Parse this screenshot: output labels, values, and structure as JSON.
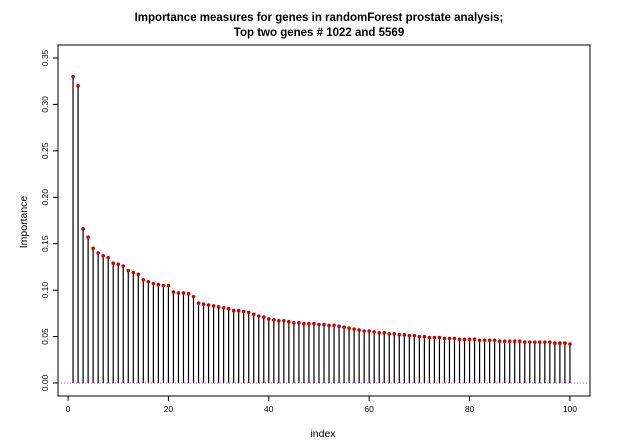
{
  "chart_data": {
    "type": "bar",
    "title_line1": "Importance measures for genes in randomForest prostate analysis;",
    "title_line2": "Top two genes # 1022 and 5569",
    "xlabel": "index",
    "ylabel": "Importance",
    "xlim": [
      -2,
      104
    ],
    "ylim": [
      -0.014,
      0.364
    ],
    "x_ticks": [
      0,
      20,
      40,
      60,
      80,
      100
    ],
    "y_ticks": [
      0.0,
      0.05,
      0.1,
      0.15,
      0.2,
      0.25,
      0.3,
      0.35
    ],
    "y_tick_labels": [
      "0.00",
      "0.05",
      "0.10",
      "0.15",
      "0.20",
      "0.25",
      "0.30",
      "0.35"
    ],
    "reference_line": 0,
    "colors": {
      "stem": "#000000",
      "point": "#cc0000",
      "reference_line": "#cc33cc"
    },
    "x": [
      1,
      2,
      3,
      4,
      5,
      6,
      7,
      8,
      9,
      10,
      11,
      12,
      13,
      14,
      15,
      16,
      17,
      18,
      19,
      20,
      21,
      22,
      23,
      24,
      25,
      26,
      27,
      28,
      29,
      30,
      31,
      32,
      33,
      34,
      35,
      36,
      37,
      38,
      39,
      40,
      41,
      42,
      43,
      44,
      45,
      46,
      47,
      48,
      49,
      50,
      51,
      52,
      53,
      54,
      55,
      56,
      57,
      58,
      59,
      60,
      61,
      62,
      63,
      64,
      65,
      66,
      67,
      68,
      69,
      70,
      71,
      72,
      73,
      74,
      75,
      76,
      77,
      78,
      79,
      80,
      81,
      82,
      83,
      84,
      85,
      86,
      87,
      88,
      89,
      90,
      91,
      92,
      93,
      94,
      95,
      96,
      97,
      98,
      99,
      100
    ],
    "values": [
      0.33,
      0.32,
      0.166,
      0.157,
      0.145,
      0.14,
      0.137,
      0.135,
      0.129,
      0.128,
      0.126,
      0.121,
      0.119,
      0.117,
      0.111,
      0.109,
      0.107,
      0.106,
      0.105,
      0.105,
      0.098,
      0.097,
      0.097,
      0.096,
      0.093,
      0.086,
      0.085,
      0.084,
      0.083,
      0.082,
      0.081,
      0.08,
      0.078,
      0.078,
      0.077,
      0.076,
      0.074,
      0.072,
      0.071,
      0.069,
      0.068,
      0.067,
      0.067,
      0.066,
      0.065,
      0.065,
      0.064,
      0.064,
      0.064,
      0.063,
      0.063,
      0.062,
      0.062,
      0.061,
      0.06,
      0.059,
      0.058,
      0.057,
      0.056,
      0.056,
      0.055,
      0.054,
      0.054,
      0.053,
      0.053,
      0.052,
      0.052,
      0.051,
      0.051,
      0.05,
      0.05,
      0.049,
      0.049,
      0.049,
      0.048,
      0.048,
      0.048,
      0.047,
      0.047,
      0.047,
      0.047,
      0.046,
      0.046,
      0.046,
      0.046,
      0.045,
      0.045,
      0.045,
      0.045,
      0.045,
      0.044,
      0.044,
      0.044,
      0.044,
      0.044,
      0.044,
      0.043,
      0.043,
      0.043,
      0.042
    ]
  }
}
